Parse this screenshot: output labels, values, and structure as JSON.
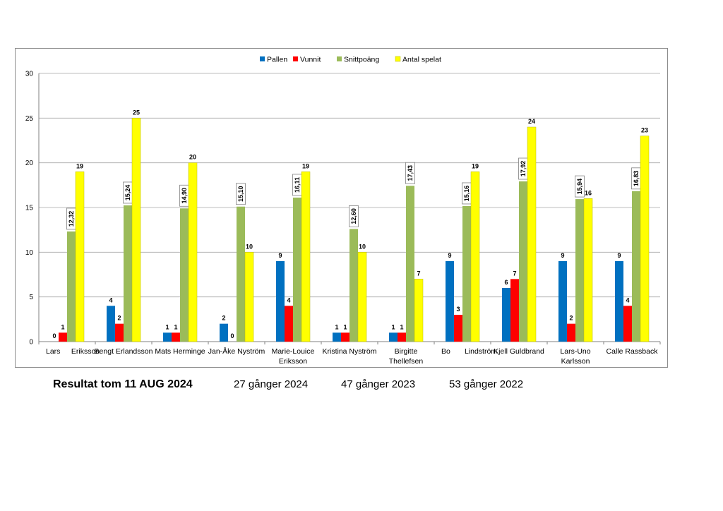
{
  "footer": {
    "result_label": "Resultat tom 11 AUG 2024",
    "games_2024": "27 gånger 2024",
    "games_2023": "47 gånger 2023",
    "games_2022": "53 gånger 2022"
  },
  "chart_data": {
    "type": "bar",
    "title": "",
    "xlabel": "",
    "ylabel": "",
    "ylim": [
      0,
      30
    ],
    "yticks": [
      "0",
      "5",
      "10",
      "15",
      "20",
      "25",
      "30"
    ],
    "grid": true,
    "legend": "top",
    "categories": [
      [
        "Lars",
        "Eriksson"
      ],
      [
        "Bengt Erlandsson"
      ],
      [
        "Mats Herminge"
      ],
      [
        "Jan-Åke Nyström"
      ],
      [
        "Marie-Louice",
        "Eriksson"
      ],
      [
        "Kristina Nyström"
      ],
      [
        "Birgitte",
        "Thellefsen"
      ],
      [
        "Bo",
        "Lindström"
      ],
      [
        "Kjell Guldbrand"
      ],
      [
        "Lars-Uno",
        "Karlsson"
      ],
      [
        "Calle Rassback"
      ]
    ],
    "series": [
      {
        "name": "Pallen",
        "color": "#0070C0",
        "values": [
          0,
          4,
          1,
          2,
          9,
          1,
          1,
          9,
          6,
          9,
          9
        ],
        "labels": [
          "0",
          "4",
          "1",
          "2",
          "9",
          "1",
          "1",
          "9",
          "6",
          "9",
          "9"
        ]
      },
      {
        "name": "Vunnit",
        "color": "#FF0000",
        "values": [
          1,
          2,
          1,
          0,
          4,
          1,
          1,
          3,
          7,
          2,
          4
        ],
        "labels": [
          "1",
          "2",
          "1",
          "0",
          "4",
          "1",
          "1",
          "3",
          "7",
          "2",
          "4"
        ]
      },
      {
        "name": "Snittpoäng",
        "color": "#9BBB59",
        "values": [
          12.32,
          15.24,
          14.9,
          15.1,
          16.11,
          12.6,
          17.43,
          15.16,
          17.92,
          15.94,
          16.83
        ],
        "labels": [
          "12,32",
          "15,24",
          "14,90",
          "15,10",
          "16,11",
          "12,60",
          "17,43",
          "15,16",
          "17,92",
          "15,94",
          "16,83"
        ]
      },
      {
        "name": "Antal spelat",
        "color": "#FFFF00",
        "values": [
          19,
          25,
          20,
          10,
          19,
          10,
          7,
          19,
          24,
          16,
          23
        ],
        "labels": [
          "19",
          "25",
          "20",
          "10",
          "19",
          "10",
          "7",
          "19",
          "24",
          "16",
          "23"
        ]
      }
    ]
  }
}
